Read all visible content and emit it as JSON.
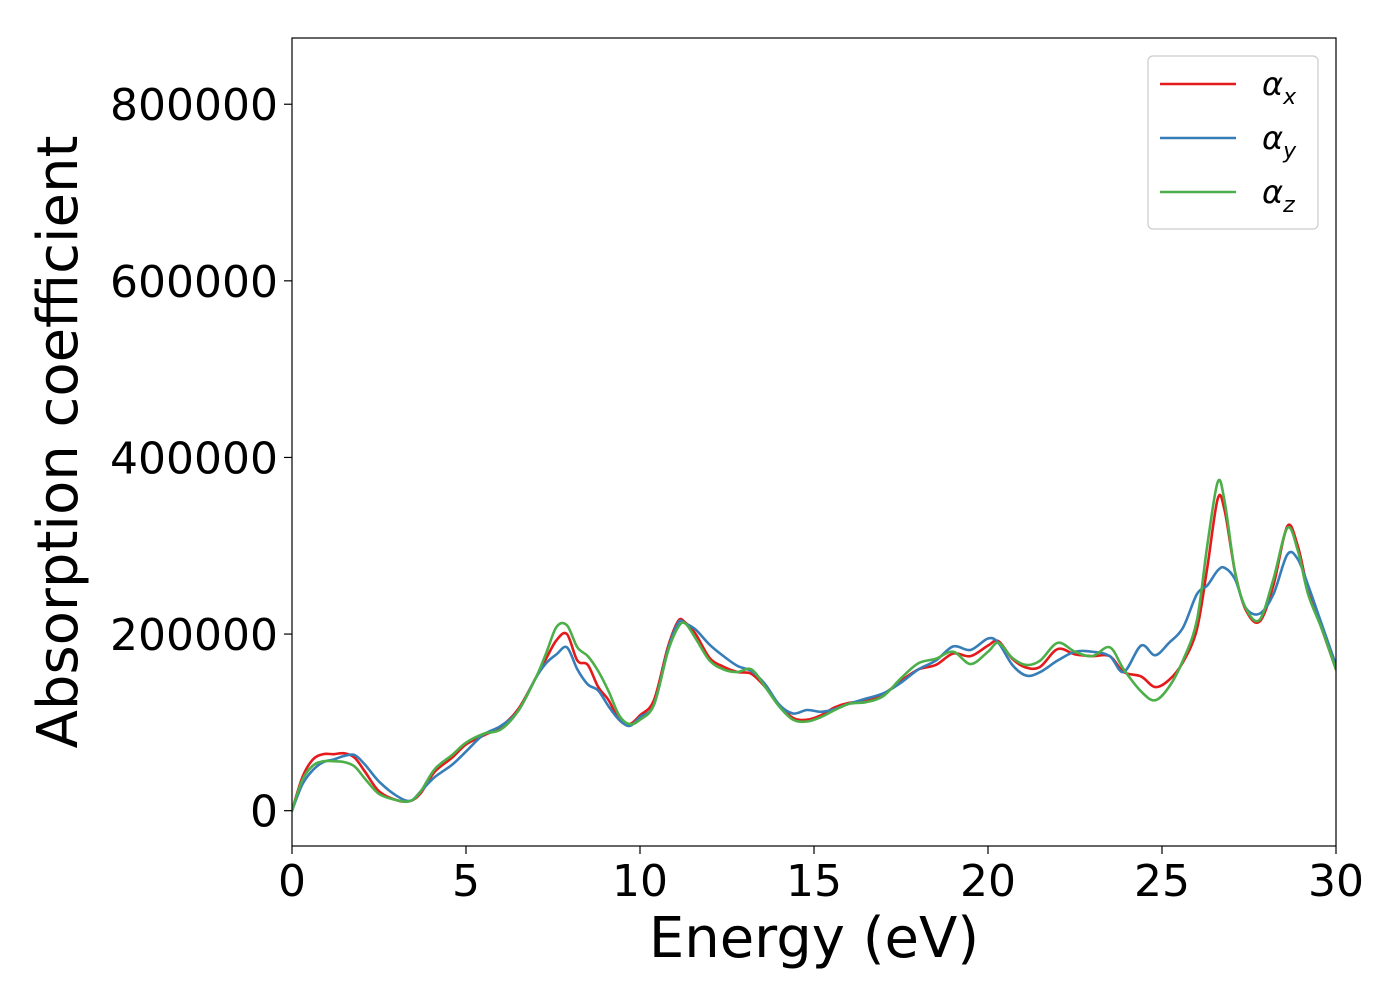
{
  "chart_data": {
    "type": "line",
    "title": "",
    "xlabel": "Energy (eV)",
    "ylabel": "Absorption coefficient",
    "xlim": [
      0,
      30
    ],
    "ylim": [
      -40000,
      875000
    ],
    "xticks": [
      0,
      5,
      10,
      15,
      20,
      25,
      30
    ],
    "xtick_labels": [
      "0",
      "5",
      "10",
      "15",
      "20",
      "25",
      "30"
    ],
    "yticks": [
      0,
      200000,
      400000,
      600000,
      800000
    ],
    "ytick_labels": [
      "0",
      "200000",
      "400000",
      "600000",
      "800000"
    ],
    "grid": false,
    "legend_position": "top-right",
    "series": [
      {
        "name": "α_x",
        "label_base": "α",
        "label_sub": "x",
        "color": "#e41a1c",
        "x": [
          0,
          0.3,
          0.6,
          0.9,
          1.2,
          1.5,
          1.8,
          2.1,
          2.5,
          3.0,
          3.4,
          3.7,
          4.1,
          4.6,
          5.0,
          5.5,
          6.0,
          6.5,
          7.0,
          7.3,
          7.6,
          7.9,
          8.2,
          8.5,
          8.8,
          9.1,
          9.4,
          9.7,
          10.0,
          10.4,
          10.8,
          11.1,
          11.3,
          11.6,
          12.0,
          12.4,
          12.8,
          13.2,
          13.6,
          14.0,
          14.4,
          14.8,
          15.2,
          15.6,
          16.0,
          16.5,
          17.0,
          17.5,
          18.0,
          18.5,
          19.0,
          19.5,
          20.0,
          20.3,
          20.7,
          21.1,
          21.5,
          22.0,
          22.5,
          23.0,
          23.5,
          23.9,
          24.4,
          24.8,
          25.2,
          25.6,
          26.0,
          26.3,
          26.6,
          26.8,
          27.1,
          27.4,
          27.8,
          28.2,
          28.6,
          28.9,
          29.2,
          29.6,
          30.0
        ],
        "values": [
          0,
          38000,
          58000,
          64000,
          64000,
          65000,
          60000,
          44000,
          22000,
          12000,
          11000,
          20000,
          44000,
          60000,
          75000,
          85000,
          95000,
          115000,
          150000,
          172000,
          193000,
          200000,
          170000,
          165000,
          140000,
          125000,
          103000,
          98000,
          108000,
          125000,
          185000,
          215000,
          213000,
          200000,
          173000,
          163000,
          157000,
          155000,
          140000,
          120000,
          105000,
          103000,
          108000,
          117000,
          122000,
          124000,
          132000,
          147000,
          160000,
          165000,
          178000,
          175000,
          187000,
          192000,
          172000,
          162000,
          163000,
          183000,
          177000,
          175000,
          175000,
          157000,
          152000,
          140000,
          148000,
          168000,
          205000,
          275000,
          353000,
          340000,
          270000,
          228000,
          214000,
          255000,
          322000,
          300000,
          250000,
          205000,
          160000
        ]
      },
      {
        "name": "α_y",
        "label_base": "α",
        "label_sub": "y",
        "color": "#377eb8",
        "x": [
          0,
          0.3,
          0.6,
          0.9,
          1.2,
          1.5,
          1.8,
          2.1,
          2.5,
          3.0,
          3.4,
          3.7,
          4.1,
          4.6,
          5.0,
          5.5,
          6.0,
          6.5,
          7.0,
          7.3,
          7.6,
          7.9,
          8.2,
          8.5,
          8.8,
          9.1,
          9.4,
          9.7,
          10.0,
          10.4,
          10.8,
          11.1,
          11.3,
          11.6,
          12.0,
          12.4,
          12.8,
          13.2,
          13.6,
          14.0,
          14.4,
          14.8,
          15.2,
          15.6,
          16.0,
          16.5,
          17.0,
          17.5,
          18.0,
          18.5,
          19.0,
          19.5,
          20.0,
          20.3,
          20.7,
          21.1,
          21.5,
          22.0,
          22.5,
          23.0,
          23.5,
          23.9,
          24.4,
          24.8,
          25.2,
          25.6,
          26.0,
          26.3,
          26.6,
          26.8,
          27.1,
          27.4,
          27.8,
          28.2,
          28.6,
          28.9,
          29.2,
          29.6,
          30.0
        ],
        "values": [
          0,
          30000,
          46000,
          55000,
          58000,
          62000,
          63000,
          52000,
          33000,
          17000,
          11000,
          22000,
          38000,
          52000,
          67000,
          86000,
          96000,
          113000,
          150000,
          167000,
          177000,
          185000,
          160000,
          143000,
          136000,
          118000,
          103000,
          96000,
          106000,
          120000,
          182000,
          213000,
          212000,
          205000,
          188000,
          175000,
          164000,
          158000,
          143000,
          120000,
          110000,
          114000,
          112000,
          115000,
          121000,
          127000,
          133000,
          145000,
          160000,
          170000,
          186000,
          182000,
          195000,
          190000,
          165000,
          153000,
          157000,
          170000,
          180000,
          180000,
          175000,
          157000,
          187000,
          176000,
          190000,
          207000,
          245000,
          255000,
          272000,
          275000,
          262000,
          230000,
          223000,
          245000,
          290000,
          285000,
          255000,
          210000,
          165000
        ]
      },
      {
        "name": "α_z",
        "label_base": "α",
        "label_sub": "z",
        "color": "#4daf4a",
        "x": [
          0,
          0.3,
          0.6,
          0.9,
          1.2,
          1.5,
          1.8,
          2.1,
          2.5,
          3.0,
          3.4,
          3.7,
          4.1,
          4.6,
          5.0,
          5.5,
          6.0,
          6.5,
          7.0,
          7.3,
          7.6,
          7.9,
          8.2,
          8.5,
          8.8,
          9.1,
          9.4,
          9.7,
          10.0,
          10.4,
          10.8,
          11.1,
          11.3,
          11.6,
          12.0,
          12.4,
          12.8,
          13.2,
          13.6,
          14.0,
          14.4,
          14.8,
          15.2,
          15.6,
          16.0,
          16.5,
          17.0,
          17.5,
          18.0,
          18.5,
          19.0,
          19.5,
          20.0,
          20.3,
          20.7,
          21.1,
          21.5,
          22.0,
          22.5,
          23.0,
          23.5,
          23.9,
          24.4,
          24.8,
          25.2,
          25.6,
          26.0,
          26.3,
          26.6,
          26.8,
          27.1,
          27.4,
          27.8,
          28.2,
          28.6,
          28.9,
          29.2,
          29.6,
          30.0
        ],
        "values": [
          0,
          35000,
          51000,
          56000,
          56000,
          55000,
          50000,
          36000,
          19000,
          12000,
          11000,
          22000,
          47000,
          63000,
          77000,
          87000,
          92000,
          113000,
          150000,
          178000,
          208000,
          210000,
          185000,
          175000,
          158000,
          135000,
          108000,
          98000,
          103000,
          120000,
          180000,
          208000,
          212000,
          195000,
          170000,
          160000,
          157000,
          160000,
          140000,
          118000,
          103000,
          101000,
          106000,
          114000,
          121000,
          123000,
          130000,
          150000,
          167000,
          172000,
          180000,
          166000,
          180000,
          190000,
          173000,
          165000,
          170000,
          190000,
          180000,
          175000,
          185000,
          160000,
          135000,
          125000,
          140000,
          170000,
          215000,
          300000,
          372000,
          350000,
          270000,
          230000,
          216000,
          262000,
          320000,
          295000,
          245000,
          205000,
          160000
        ]
      }
    ]
  }
}
